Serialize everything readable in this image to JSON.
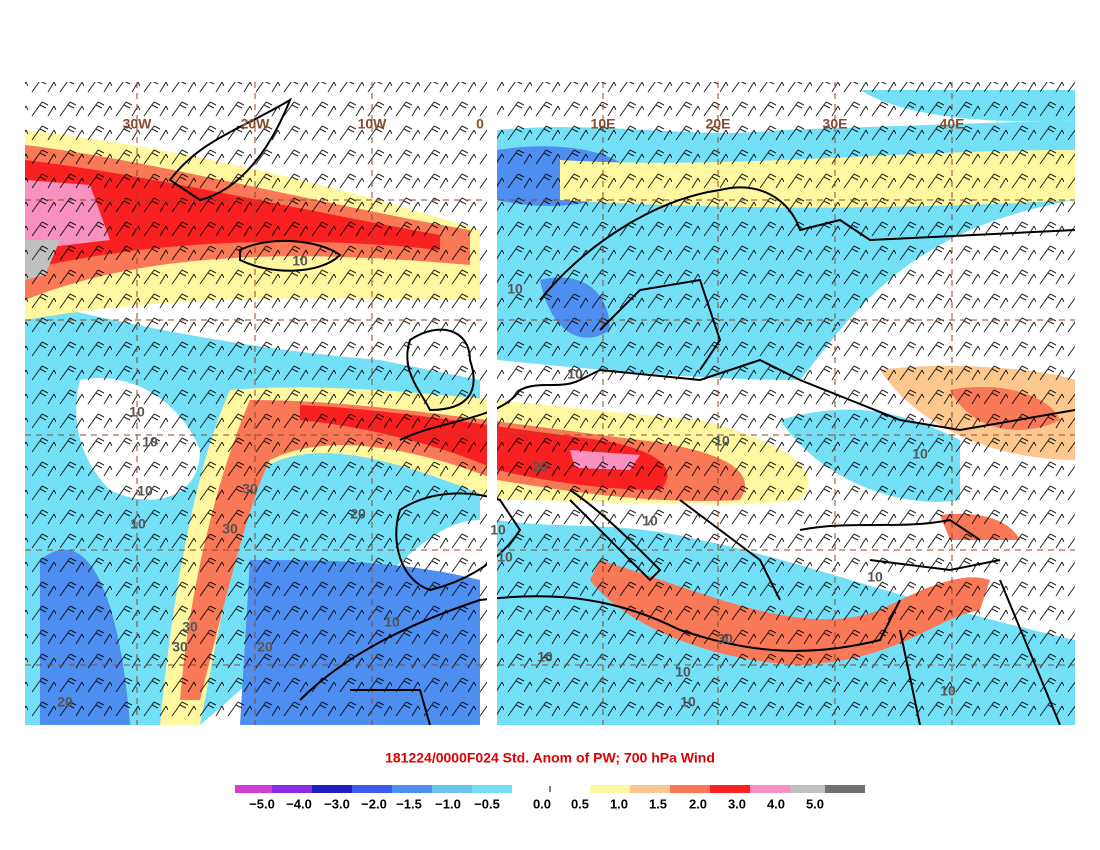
{
  "title": "181224/0000F024 Std. Anom of PW; 700 hPa Wind",
  "longitude_labels": [
    "30W",
    "20W",
    "10W",
    "0",
    "10E",
    "20E",
    "30E",
    "40E"
  ],
  "contour_labels": [
    "10",
    "10",
    "10",
    "10",
    "10",
    "10",
    "10",
    "20",
    "20",
    "30",
    "30",
    "30",
    "30",
    "20",
    "10",
    "10",
    "10",
    "10",
    "10",
    "10",
    "10",
    "10",
    "10",
    "30",
    "10",
    "20",
    "10"
  ],
  "legend": {
    "labels": [
      "−5.0",
      "−4.0",
      "−3.0",
      "−2.0",
      "−1.5",
      "−1.0",
      "−0.5",
      "0.0",
      "0.5",
      "1.0",
      "1.5",
      "2.0",
      "3.0",
      "4.0",
      "5.0"
    ],
    "colors": [
      "#d040d0",
      "#8a2be2",
      "#2020c0",
      "#3a5ce8",
      "#4d8ef0",
      "#6cc4f0",
      "#74e0f8",
      "#ffffff",
      "#fff8a0",
      "#fcc890",
      "#f87858",
      "#f82020",
      "#f890c0",
      "#c0c0c0",
      "#707070"
    ]
  }
}
